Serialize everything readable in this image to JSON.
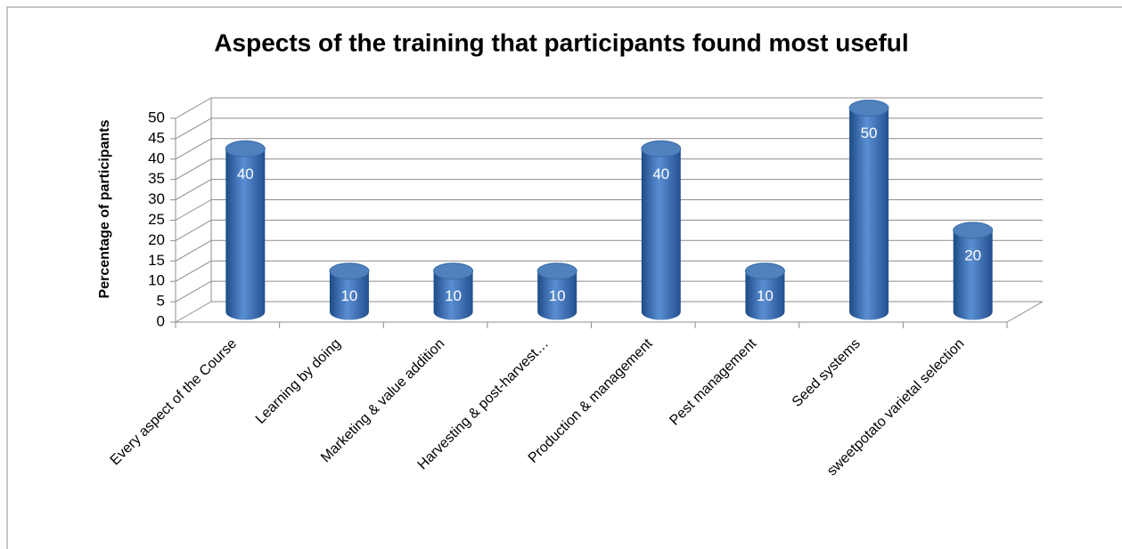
{
  "chart_data": {
    "type": "bar3d",
    "title": "Aspects of the training that participants found most useful",
    "y_label": "Percentage of participants",
    "categories": [
      "Every aspect of the Course",
      "Learning by doing",
      "Marketing & value addition",
      "Harvesting & post-harvest…",
      "Production & management",
      "Pest management",
      "Seed systems",
      "sweetpotato varietal selection"
    ],
    "values": [
      40,
      10,
      10,
      10,
      40,
      10,
      50,
      20
    ],
    "color": "#4f81bd",
    "ylim": [
      0,
      50
    ],
    "yticks": [
      0,
      5,
      10,
      15,
      20,
      25,
      30,
      35,
      40,
      45,
      50
    ],
    "grid": true
  }
}
